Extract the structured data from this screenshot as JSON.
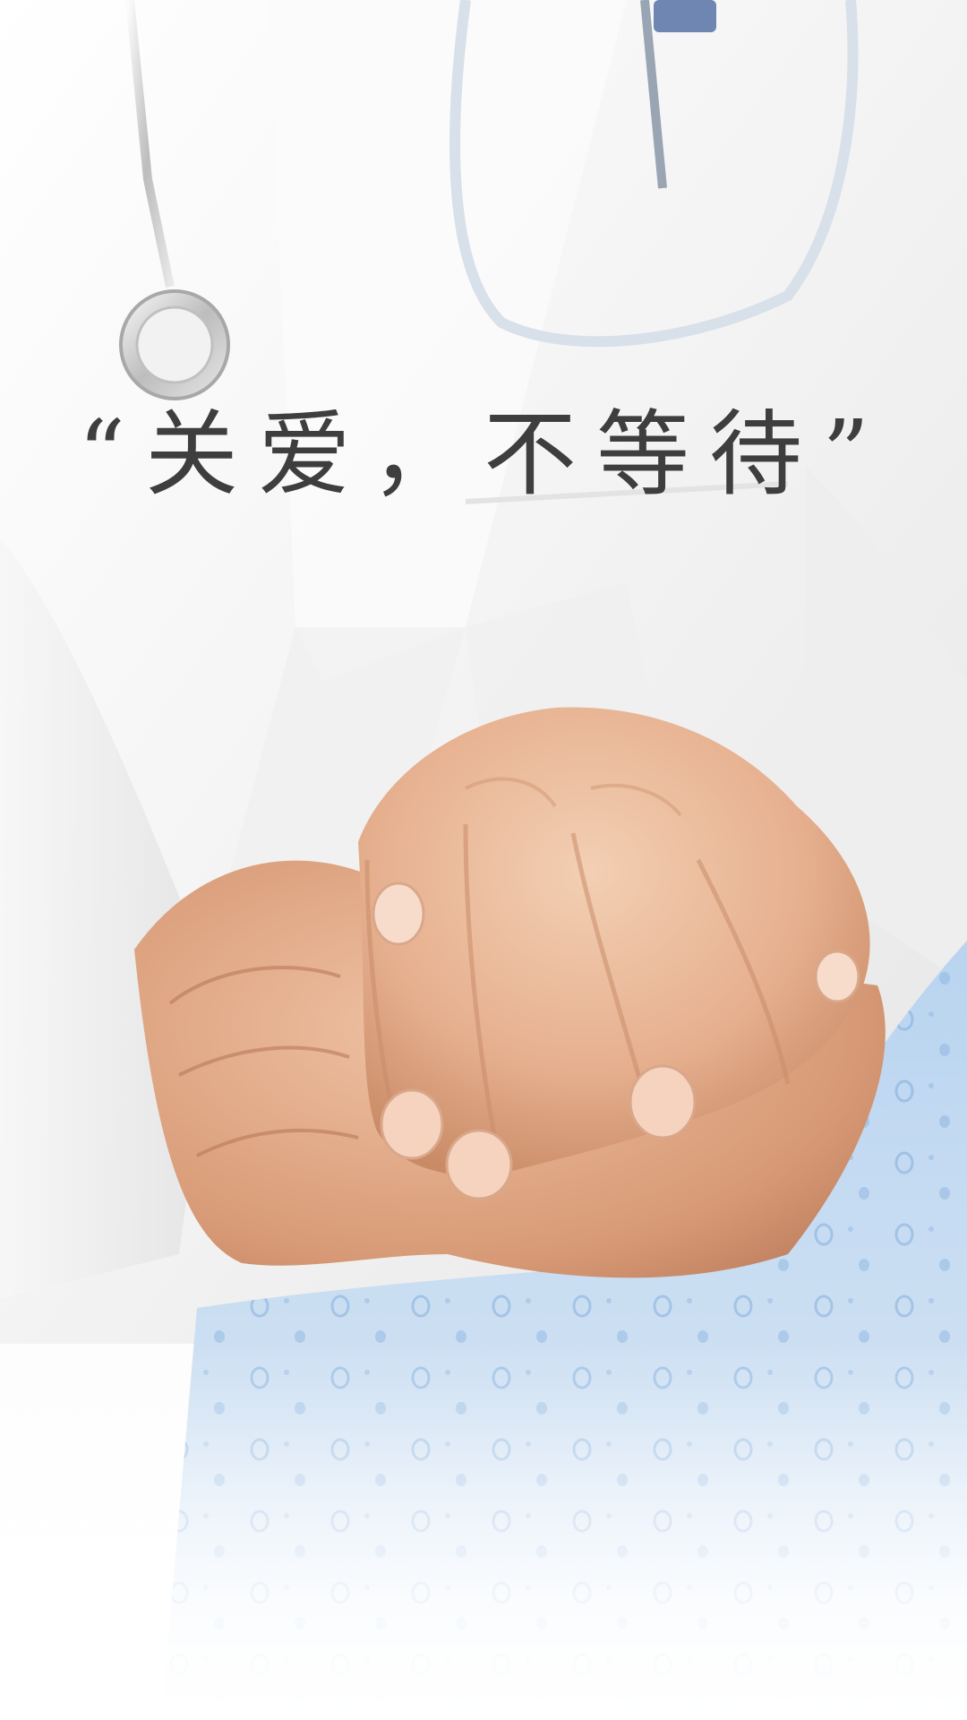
{
  "poster": {
    "slogan": "“关爱，不等待”"
  },
  "colors": {
    "slogan_text": "#3e3e3e",
    "coat": "#f3f3f3",
    "blanket": "#bcd6ef",
    "blanket_dots": "#5f97cf",
    "skin": "#e9b897"
  },
  "icons": {
    "stethoscope": "stethoscope-icon"
  }
}
